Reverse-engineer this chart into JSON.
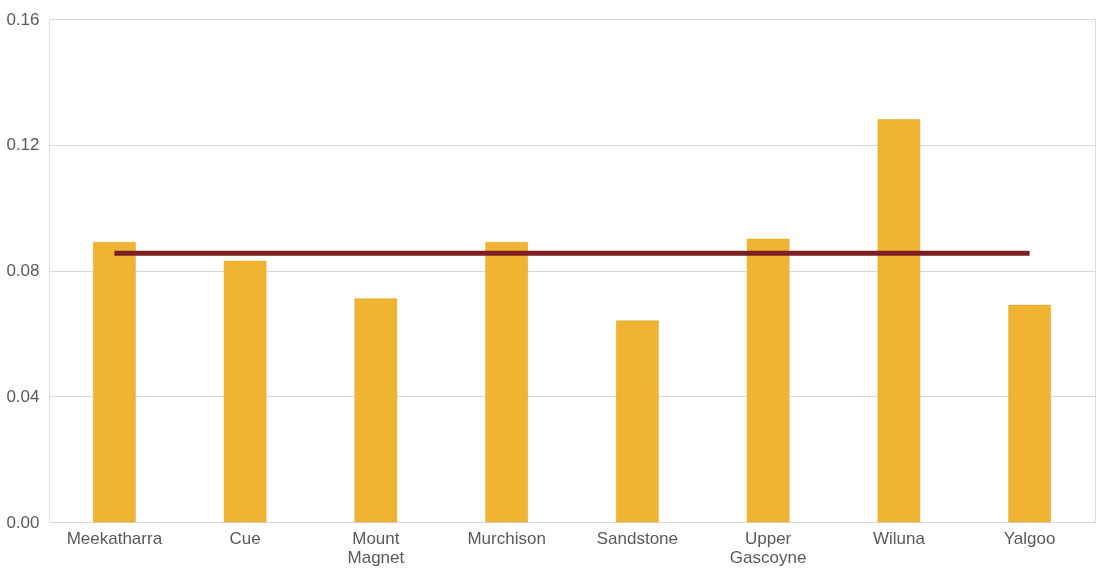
{
  "chart_data": {
    "type": "bar",
    "categories": [
      "Meekatharra",
      "Cue",
      "Mount Magnet",
      "Murchison",
      "Sandstone",
      "Upper Gascoyne",
      "Wiluna",
      "Yalgoo"
    ],
    "series": [
      {
        "color": "#f0b432",
        "values": [
          0.089,
          0.083,
          0.071,
          0.089,
          0.064,
          0.09,
          0.128,
          0.069
        ]
      },
      {
        "type": "line",
        "color": "#7b1f22",
        "values": [
          0.0855,
          0.0855,
          0.0855,
          0.0855,
          0.0855,
          0.0855,
          0.0855,
          0.0855
        ]
      }
    ],
    "ylim": [
      0,
      0.16
    ],
    "yticks": [
      {
        "value": 0,
        "label": "0.00"
      },
      {
        "value": 0.04,
        "label": "0.04"
      },
      {
        "value": 0.08,
        "label": "0.08"
      },
      {
        "value": 0.12,
        "label": "0.12"
      },
      {
        "value": 0.16,
        "label": "0.16"
      }
    ],
    "grid": "y"
  }
}
